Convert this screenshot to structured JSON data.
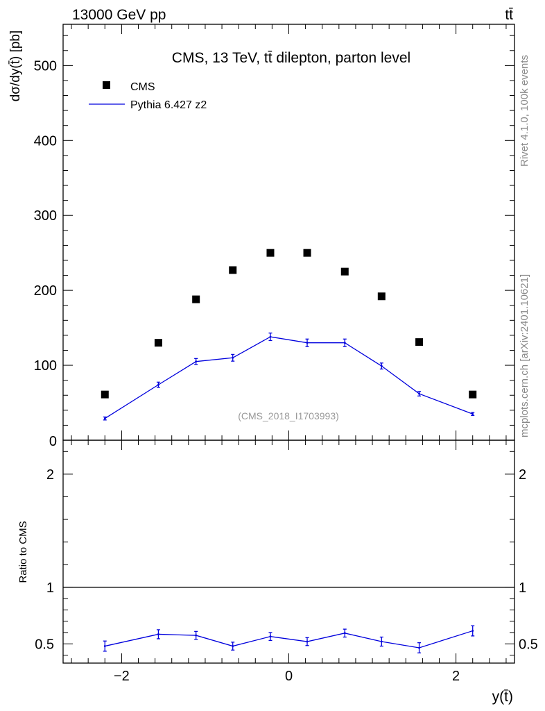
{
  "header": {
    "left": "13000 GeV pp",
    "right": "tt̄"
  },
  "side": {
    "rivet": "Rivet 4.1.0,  100k events",
    "mcplots": "mcplots.cern.ch [arXiv:2401.10621]"
  },
  "chart_data": {
    "type": "scatter",
    "title": "CMS, 13 TeV, tt̄ dilepton, parton level",
    "watermark": "(CMS_2018_I1703993)",
    "xlabel": "y(t̄)",
    "ylabel": "dσ/dy(t̄) [pb]",
    "ratio_ylabel": "Ratio to CMS",
    "xlim": [
      -2.7,
      2.7
    ],
    "ylim": [
      0,
      555
    ],
    "ratio_ylim": [
      0.33,
      2.3
    ],
    "x_ticks": [
      -2,
      0,
      2
    ],
    "x_tick_labels": [
      "−2",
      "0",
      "2"
    ],
    "y_ticks": [
      100,
      200,
      300,
      400,
      500
    ],
    "y_tick_labels": [
      "100",
      "200",
      "300",
      "400",
      "500"
    ],
    "y_zero_label": "0",
    "ratio_y_ticks": [
      0.5,
      1,
      2
    ],
    "ratio_y_tick_labels": [
      "0.5",
      "1",
      "2"
    ],
    "legend_position": "top-left",
    "x": [
      -2.2,
      -1.56,
      -1.11,
      -0.67,
      -0.22,
      0.22,
      0.67,
      1.11,
      1.56,
      2.2
    ],
    "series": [
      {
        "name": "CMS",
        "color": "#000000",
        "marker": "square",
        "values": [
          61,
          130,
          188,
          227,
          250,
          250,
          225,
          192,
          131,
          61
        ]
      },
      {
        "name": "Pythia 6.427 z2",
        "color": "#0000dd",
        "marker": "line",
        "values": [
          29,
          74,
          105,
          110,
          138,
          130,
          130,
          99,
          62,
          35
        ],
        "errors": [
          2,
          3.5,
          4,
          4.5,
          5,
          5,
          5,
          4,
          3,
          2
        ]
      }
    ],
    "ratio": {
      "reference_line": 1,
      "values": [
        0.48,
        0.585,
        0.575,
        0.48,
        0.565,
        0.52,
        0.595,
        0.52,
        0.465,
        0.615
      ],
      "errors": [
        0.045,
        0.04,
        0.035,
        0.035,
        0.035,
        0.035,
        0.035,
        0.04,
        0.045,
        0.045
      ]
    }
  }
}
